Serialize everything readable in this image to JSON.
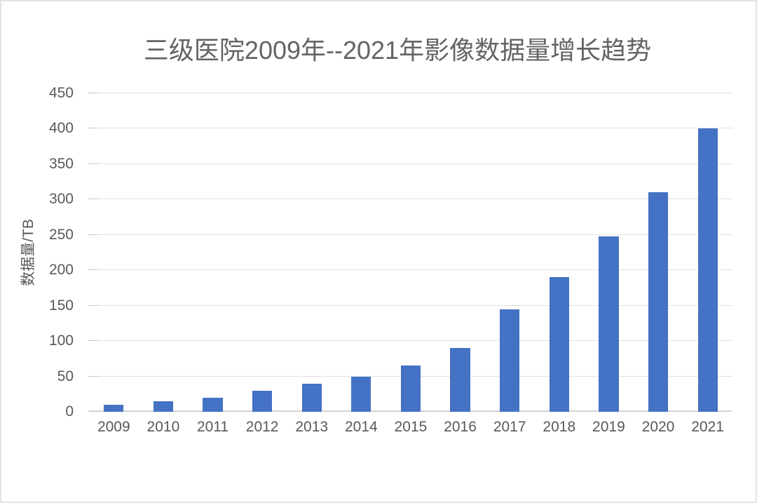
{
  "chart_data": {
    "type": "bar",
    "title": "三级医院2009年--2021年影像数据量增长趋势",
    "ylabel": "数据量/TB",
    "xlabel": "",
    "categories": [
      "2009",
      "2010",
      "2011",
      "2012",
      "2013",
      "2014",
      "2015",
      "2016",
      "2017",
      "2018",
      "2019",
      "2020",
      "2021"
    ],
    "values": [
      10,
      15,
      20,
      30,
      40,
      50,
      65,
      90,
      145,
      190,
      248,
      310,
      400
    ],
    "ylim": [
      0,
      450
    ],
    "ytick_step": 50,
    "yticks": [
      0,
      50,
      100,
      150,
      200,
      250,
      300,
      350,
      400,
      450
    ],
    "grid": true,
    "legend": "none",
    "colors": {
      "bar": "#4472C4",
      "title_text": "#646464",
      "axis_text": "#595959",
      "gridline": "#E2E2E2",
      "axis_line": "#D4D4D4",
      "tick_mark": "#C9C9C9",
      "border": "#E3E3E3",
      "background": "#FFFFFF"
    }
  }
}
